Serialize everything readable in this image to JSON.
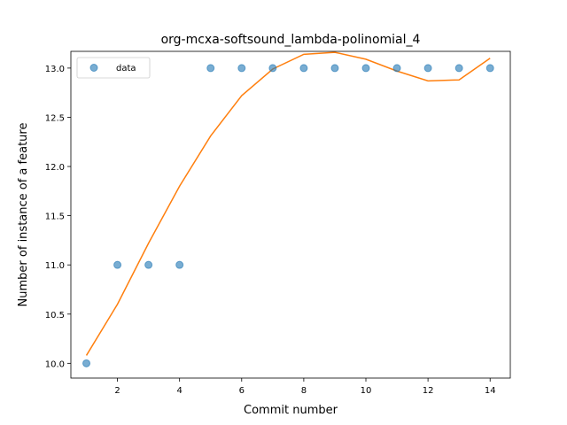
{
  "chart_data": {
    "type": "scatter",
    "title": "org-mcxa-softsound_lambda-polinomial_4",
    "xlabel": "Commit number",
    "ylabel": "Number of instance of a feature",
    "xlim": [
      0.5,
      14.65
    ],
    "ylim": [
      9.85,
      13.17
    ],
    "x_ticks": [
      2,
      4,
      6,
      8,
      10,
      12,
      14
    ],
    "y_ticks": [
      10.0,
      10.5,
      11.0,
      11.5,
      12.0,
      12.5,
      13.0
    ],
    "legend": {
      "placement": "top-left",
      "entries": [
        "data"
      ]
    },
    "grid": false,
    "colors": {
      "data": "#1f77b4",
      "fit": "#ff7f0e"
    },
    "series": [
      {
        "name": "data",
        "kind": "scatter",
        "x": [
          1,
          2,
          3,
          4,
          5,
          6,
          7,
          8,
          9,
          10,
          11,
          12,
          13,
          14
        ],
        "y": [
          10,
          11,
          11,
          11,
          13,
          13,
          13,
          13,
          13,
          13,
          13,
          13,
          13,
          13
        ]
      },
      {
        "kind": "line",
        "x": [
          1,
          2,
          3,
          4,
          5,
          6,
          7,
          8,
          9,
          10,
          11,
          12,
          13,
          14
        ],
        "y": [
          10.08,
          10.6,
          11.22,
          11.8,
          12.31,
          12.72,
          12.99,
          13.14,
          13.16,
          13.09,
          12.97,
          12.87,
          12.88,
          13.1
        ]
      }
    ]
  }
}
